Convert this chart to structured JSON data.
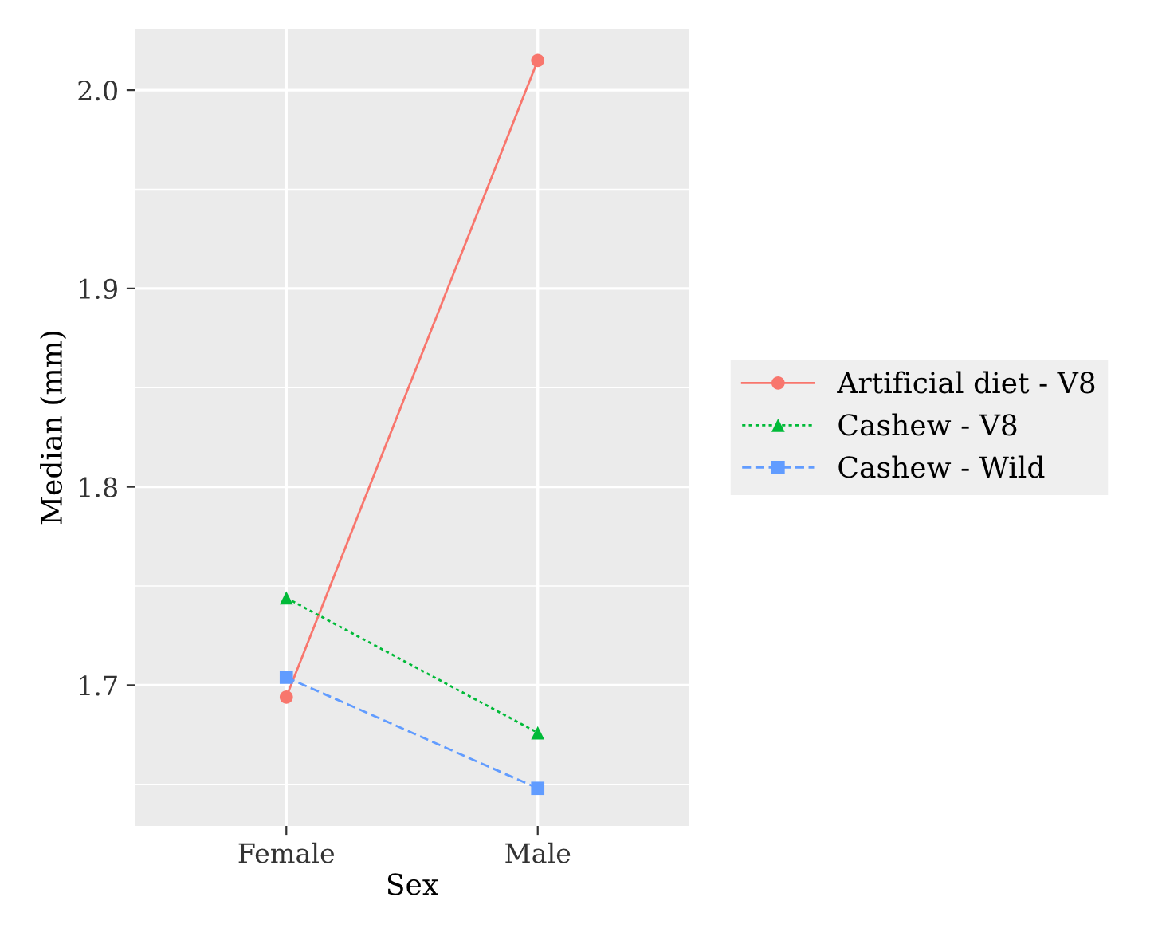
{
  "chart_data": {
    "type": "line",
    "xlabel": "Sex",
    "ylabel": "Median (mm)",
    "categories": [
      "Female",
      "Male"
    ],
    "series": [
      {
        "name": "Artificial diet - V8",
        "color": "#f8766d",
        "values": [
          1.694,
          2.015
        ],
        "marker": "circle",
        "line_style": "solid"
      },
      {
        "name": "Cashew - V8",
        "color": "#00ba38",
        "values": [
          1.744,
          1.676
        ],
        "marker": "triangle",
        "line_style": "dotted"
      },
      {
        "name": "Cashew - Wild",
        "color": "#619cff",
        "values": [
          1.704,
          1.648
        ],
        "marker": "square",
        "line_style": "dashed"
      }
    ],
    "ylim": [
      1.629,
      2.031
    ],
    "yticks": [
      {
        "value": 1.7,
        "label": "1.7"
      },
      {
        "value": 1.8,
        "label": "1.8"
      },
      {
        "value": 1.9,
        "label": "1.9"
      },
      {
        "value": 2.0,
        "label": "2.0"
      }
    ],
    "grid": true,
    "legend": "right"
  }
}
